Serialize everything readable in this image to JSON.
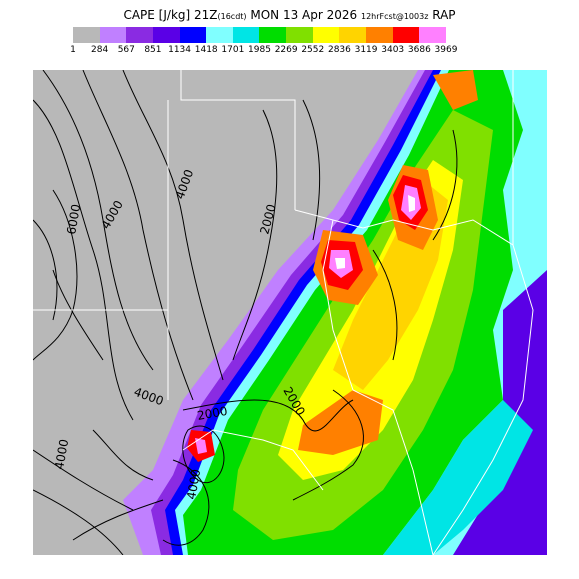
{
  "header": {
    "title_main": "CAPE [J/kg] 21Z",
    "title_paren": "(16cdt)",
    "title_date": "MON 13 Apr 2026",
    "title_fcst": "12hrFcst@1003z",
    "title_model": "RAP"
  },
  "colorbar": {
    "colors": [
      "#b8b8b8",
      "#c080ff",
      "#8a2be2",
      "#5a00e6",
      "#0000ff",
      "#80ffff",
      "#00e5e5",
      "#00dd00",
      "#80e000",
      "#ffff00",
      "#ffd400",
      "#ff8000",
      "#ff0000",
      "#ff80ff"
    ],
    "labels": [
      "1",
      "284",
      "567",
      "851",
      "1134",
      "1418",
      "1701",
      "1985",
      "2269",
      "2552",
      "2836",
      "3119",
      "3403",
      "3686",
      "3969"
    ]
  },
  "map": {
    "contour_labels": [
      "6000",
      "4000",
      "4000",
      "2000",
      "2000",
      "4000",
      "2000",
      "4000",
      "4000"
    ]
  }
}
